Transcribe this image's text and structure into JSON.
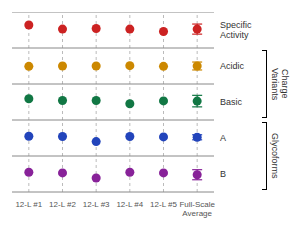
{
  "chart_data": {
    "type": "scatter",
    "categories": [
      "12-L #1",
      "12-L #2",
      "12-L #3",
      "12-L #4",
      "12-L #5",
      "Full-Scale\nAverage"
    ],
    "series": [
      {
        "name": "Specific\nActivity",
        "color": "#cc2222",
        "values": [
          0.28,
          0.05,
          0.08,
          0.05,
          -0.08,
          0.05
        ],
        "errors": [
          null,
          null,
          null,
          null,
          null,
          0.28
        ]
      },
      {
        "name": "Acidic",
        "color": "#cc8800",
        "values": [
          -0.02,
          0.0,
          0.0,
          0.02,
          -0.02,
          0.0
        ],
        "errors": [
          null,
          null,
          null,
          null,
          null,
          0.22
        ]
      },
      {
        "name": "Basic",
        "color": "#117744",
        "values": [
          0.18,
          0.08,
          0.08,
          -0.1,
          0.06,
          0.05
        ],
        "errors": [
          null,
          null,
          null,
          null,
          null,
          0.32
        ]
      },
      {
        "name": "A",
        "color": "#2244bb",
        "values": [
          0.1,
          0.08,
          -0.2,
          0.08,
          0.06,
          0.04
        ],
        "errors": [
          null,
          null,
          null,
          null,
          null,
          0.14
        ]
      },
      {
        "name": "B",
        "color": "#882299",
        "values": [
          0.1,
          0.06,
          -0.22,
          0.1,
          0.06,
          -0.04
        ],
        "errors": [
          null,
          null,
          null,
          null,
          null,
          0.28
        ]
      }
    ],
    "ylim": [
      -1,
      1
    ],
    "grid": true,
    "tick_labels": "x",
    "annotations": [
      {
        "text": "Charge\nVariants",
        "series": [
          "Acidic",
          "Basic"
        ]
      },
      {
        "text": "Glycoforms",
        "series": [
          "A",
          "B"
        ]
      }
    ]
  }
}
